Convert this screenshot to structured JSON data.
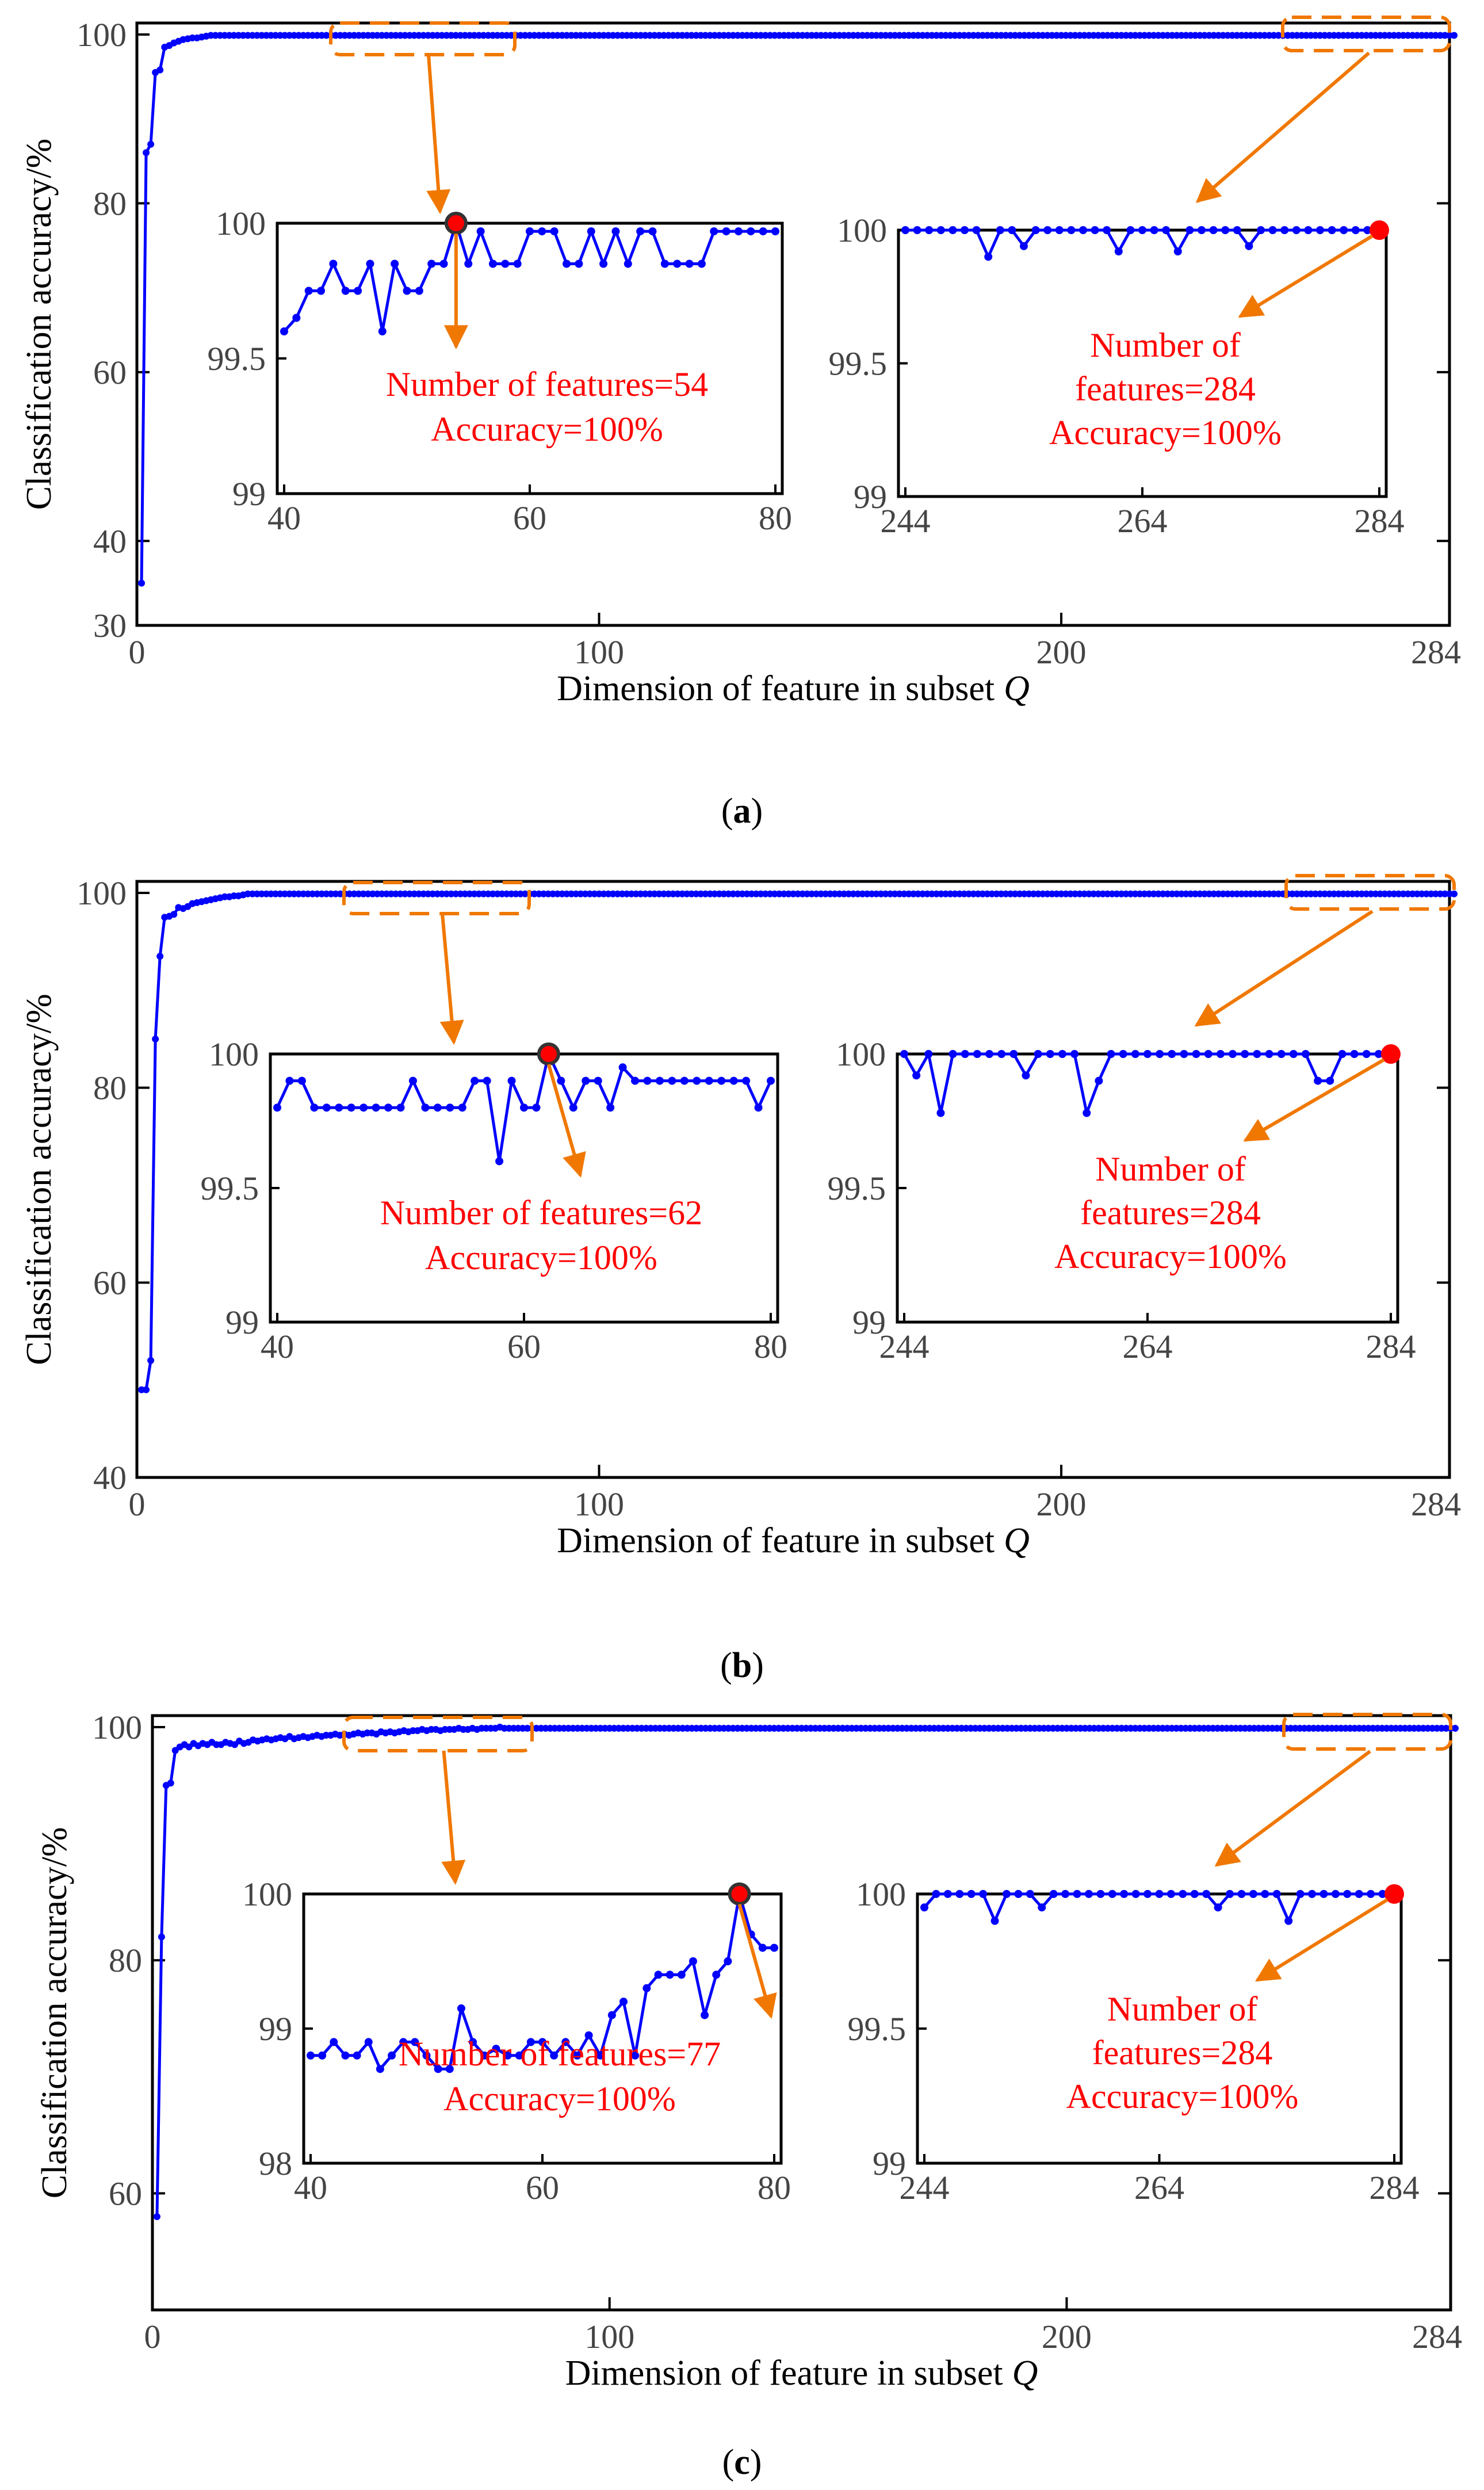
{
  "colors": {
    "line": "#0000ff",
    "highlight": "#ff0000",
    "annot": "#f07800",
    "axis": "#000000",
    "tick_text": "#444444",
    "label_text": "#000000",
    "annot_text": "#ff0000"
  },
  "chart_data": [
    {
      "type": "line",
      "panel": "a",
      "caption_letter": "a",
      "title": "",
      "xlabel": "Dimension of feature in subset",
      "xlabel_var": "Q",
      "ylabel": "Classification accuracy/%",
      "xlim": [
        0,
        284
      ],
      "ylim": [
        30,
        100
      ],
      "xticks": [
        0,
        100,
        200,
        284
      ],
      "yticks": [
        30,
        40,
        60,
        80,
        100
      ],
      "y": [
        35,
        86,
        87,
        95.5,
        95.8,
        98.5,
        98.7,
        99.0,
        99.2,
        99.4,
        99.5,
        99.6,
        99.6,
        99.7,
        99.8
      ],
      "y_rest": 99.9,
      "insets": [
        {
          "side": "left",
          "xlim": [
            40,
            80
          ],
          "ylim": [
            99,
            100
          ],
          "xticks": [
            40,
            60,
            80
          ],
          "yticks": [
            99,
            99.5,
            100
          ],
          "x": [
            40,
            41,
            42,
            43,
            44,
            45,
            46,
            47,
            48,
            49,
            50,
            51,
            52,
            53,
            54,
            55,
            56,
            57,
            58,
            59,
            60,
            61,
            62,
            63,
            64,
            65,
            66,
            67,
            68,
            69,
            70,
            71,
            72,
            73,
            74,
            75,
            76,
            77,
            78,
            79,
            80
          ],
          "y": [
            99.6,
            99.65,
            99.75,
            99.75,
            99.85,
            99.75,
            99.75,
            99.85,
            99.6,
            99.85,
            99.75,
            99.75,
            99.85,
            99.85,
            100,
            99.85,
            99.97,
            99.85,
            99.85,
            99.85,
            99.97,
            99.97,
            99.97,
            99.85,
            99.85,
            99.97,
            99.85,
            99.97,
            99.85,
            99.97,
            99.97,
            99.85,
            99.85,
            99.85,
            99.85,
            99.97,
            99.97,
            99.97,
            99.97,
            99.97,
            99.97
          ],
          "highlight": {
            "x": 54,
            "y": 100
          },
          "annotation": [
            "Number of features=54",
            "Accuracy=100%"
          ]
        },
        {
          "side": "right",
          "xlim": [
            244,
            284
          ],
          "ylim": [
            99,
            100
          ],
          "xticks": [
            244,
            264,
            284
          ],
          "yticks": [
            99,
            99.5,
            100
          ],
          "y_default": 100,
          "dips": {
            "251": 99.9,
            "254": 99.94,
            "262": 99.92,
            "267": 99.92,
            "273": 99.94
          },
          "highlight": {
            "x": 284,
            "y": 100
          },
          "annotation": [
            "Number of",
            "features=284",
            "Accuracy=100%"
          ]
        }
      ]
    },
    {
      "type": "line",
      "panel": "b",
      "caption_letter": "b",
      "title": "",
      "xlabel": "Dimension of feature in subset",
      "xlabel_var": "Q",
      "ylabel": "Classification accuracy/%",
      "xlim": [
        0,
        284
      ],
      "ylim": [
        40,
        100
      ],
      "xticks": [
        0,
        100,
        200,
        284
      ],
      "yticks": [
        40,
        60,
        80,
        100
      ],
      "y": [
        49,
        49,
        52,
        85,
        93.5,
        97.5,
        97.6,
        97.8,
        98.5,
        98.4,
        98.6,
        98.9,
        99.0,
        99.1,
        99.2,
        99.3,
        99.4,
        99.5,
        99.6,
        99.6,
        99.7,
        99.7,
        99.8
      ],
      "y_rest": 99.9,
      "insets": [
        {
          "side": "left",
          "xlim": [
            40,
            80
          ],
          "ylim": [
            99,
            100
          ],
          "xticks": [
            40,
            60,
            80
          ],
          "yticks": [
            99,
            99.5,
            100
          ],
          "x": [
            40,
            41,
            42,
            43,
            44,
            45,
            46,
            47,
            48,
            49,
            50,
            51,
            52,
            53,
            54,
            55,
            56,
            57,
            58,
            59,
            60,
            61,
            62,
            63,
            64,
            65,
            66,
            67,
            68,
            69,
            70,
            71,
            72,
            73,
            74,
            75,
            76,
            77,
            78,
            79,
            80
          ],
          "y": [
            99.8,
            99.9,
            99.9,
            99.8,
            99.8,
            99.8,
            99.8,
            99.8,
            99.8,
            99.8,
            99.8,
            99.9,
            99.8,
            99.8,
            99.8,
            99.8,
            99.9,
            99.9,
            99.6,
            99.9,
            99.8,
            99.8,
            100,
            99.9,
            99.8,
            99.9,
            99.9,
            99.8,
            99.95,
            99.9,
            99.9,
            99.9,
            99.9,
            99.9,
            99.9,
            99.9,
            99.9,
            99.9,
            99.9,
            99.8,
            99.9
          ],
          "highlight": {
            "x": 62,
            "y": 100
          },
          "annotation": [
            "Number of features=62",
            "Accuracy=100%"
          ]
        },
        {
          "side": "right",
          "xlim": [
            244,
            284
          ],
          "ylim": [
            99,
            100
          ],
          "xticks": [
            244,
            264,
            284
          ],
          "yticks": [
            99,
            99.5,
            100
          ],
          "y_default": 100,
          "dips": {
            "245": 99.92,
            "247": 99.78,
            "254": 99.92,
            "259": 99.78,
            "260": 99.9,
            "278": 99.9,
            "279": 99.9
          },
          "highlight": {
            "x": 284,
            "y": 100
          },
          "annotation": [
            "Number of",
            "features=284",
            "Accuracy=100%"
          ]
        }
      ]
    },
    {
      "type": "line",
      "panel": "c",
      "caption_letter": "c",
      "title": "",
      "xlabel": "Dimension of feature in subset",
      "xlabel_var": "Q",
      "ylabel": "Classification accuracy/%",
      "xlim": [
        0,
        284
      ],
      "ylim": [
        50,
        100
      ],
      "xticks": [
        0,
        100,
        200,
        284
      ],
      "yticks": [
        60,
        80,
        100
      ],
      "y": [
        58,
        82,
        95,
        95.2,
        98,
        98.3,
        98.5,
        98.3,
        98.6,
        98.4,
        98.6,
        98.5,
        98.7,
        98.5,
        98.5,
        98.7,
        98.6,
        98.5,
        98.8,
        98.6,
        98.7,
        98.9,
        98.8,
        98.9,
        99.0,
        98.9,
        99.0,
        99.1,
        99.0,
        99.2,
        99.0,
        99.1,
        99.2,
        99.1,
        99.2,
        99.3,
        99.2,
        99.3,
        99.3,
        99.4,
        99.3,
        99.4,
        99.3,
        99.4,
        99.5,
        99.4,
        99.5,
        99.5,
        99.4,
        99.6,
        99.5,
        99.6,
        99.5,
        99.6,
        99.7,
        99.6,
        99.7,
        99.7,
        99.8,
        99.7,
        99.8,
        99.8,
        99.7,
        99.8,
        99.8,
        99.8,
        99.9,
        99.8,
        99.8,
        99.9,
        99.8,
        99.9,
        99.9,
        99.9,
        99.9,
        100,
        99.9
      ],
      "y_rest": 99.9,
      "insets": [
        {
          "side": "left",
          "xlim": [
            40,
            80
          ],
          "ylim": [
            98,
            100
          ],
          "xticks": [
            40,
            60,
            80
          ],
          "yticks": [
            98,
            99,
            100
          ],
          "x": [
            40,
            41,
            42,
            43,
            44,
            45,
            46,
            47,
            48,
            49,
            50,
            51,
            52,
            53,
            54,
            55,
            56,
            57,
            58,
            59,
            60,
            61,
            62,
            63,
            64,
            65,
            66,
            67,
            68,
            69,
            70,
            71,
            72,
            73,
            74,
            75,
            76,
            77,
            78,
            79,
            80
          ],
          "y": [
            98.8,
            98.8,
            98.9,
            98.8,
            98.8,
            98.9,
            98.7,
            98.8,
            98.9,
            98.9,
            98.8,
            98.7,
            98.7,
            99.15,
            98.9,
            98.8,
            98.85,
            98.8,
            98.8,
            98.9,
            98.9,
            98.8,
            98.9,
            98.8,
            98.95,
            98.8,
            99.1,
            99.2,
            98.8,
            99.3,
            99.4,
            99.4,
            99.4,
            99.5,
            99.1,
            99.4,
            99.5,
            100,
            99.7,
            99.6,
            99.6
          ],
          "highlight": {
            "x": 77,
            "y": 100
          },
          "annotation": [
            "Number of features=77",
            "Accuracy=100%"
          ]
        },
        {
          "side": "right",
          "xlim": [
            244,
            284
          ],
          "ylim": [
            99,
            100
          ],
          "xticks": [
            244,
            264,
            284
          ],
          "yticks": [
            99,
            99.5,
            100
          ],
          "y_default": 100,
          "dips": {
            "244": 99.95,
            "250": 99.9,
            "254": 99.95,
            "269": 99.95,
            "275": 99.9
          },
          "highlight": {
            "x": 284,
            "y": 100
          },
          "annotation": [
            "Number of",
            "features=284",
            "Accuracy=100%"
          ]
        }
      ]
    }
  ]
}
